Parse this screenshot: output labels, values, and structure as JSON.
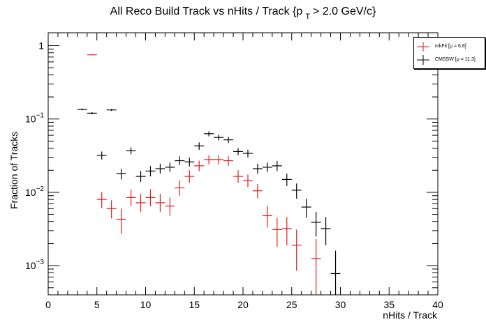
{
  "title": {
    "main": "All Reco Build Track vs nHits / Track {p",
    "sub": "T",
    "tail": "> 2.0 GeV/c}"
  },
  "legend": [
    {
      "label": "mkFit [μ = 6.8]",
      "color": "#e41a1c"
    },
    {
      "label": "CMSSW [μ = 11.3]",
      "color": "#000000"
    }
  ],
  "chart_data": {
    "type": "scatter",
    "title": "All Reco Build Track vs nHits / Track {p T > 2.0 GeV/c}",
    "xlabel": "nHits / Track",
    "ylabel": "Fraction of Tracks",
    "xlim": [
      0,
      40
    ],
    "ylim": [
      0.0004,
      1.5
    ],
    "yscale": "log",
    "x_ticks": [
      0,
      5,
      10,
      15,
      20,
      25,
      30,
      35,
      40
    ],
    "y_ticks": [
      {
        "value": 1,
        "base": "1",
        "exp": ""
      },
      {
        "value": 0.1,
        "base": "10",
        "exp": "−1"
      },
      {
        "value": 0.01,
        "base": "10",
        "exp": "−2"
      },
      {
        "value": 0.001,
        "base": "10",
        "exp": "−3"
      }
    ],
    "grid": false,
    "legend_position": "top-right",
    "series": [
      {
        "name": "mkFit [μ = 6.8]",
        "color": "#e41a1c",
        "points": [
          {
            "x": 4.5,
            "y": 0.75,
            "lo": 0.74,
            "hi": 0.76
          },
          {
            "x": 5.5,
            "y": 0.008,
            "lo": 0.0061,
            "hi": 0.0101
          },
          {
            "x": 6.5,
            "y": 0.006,
            "lo": 0.0044,
            "hi": 0.0078
          },
          {
            "x": 7.5,
            "y": 0.0043,
            "lo": 0.0027,
            "hi": 0.006
          },
          {
            "x": 8.5,
            "y": 0.0085,
            "lo": 0.0065,
            "hi": 0.011
          },
          {
            "x": 9.5,
            "y": 0.0072,
            "lo": 0.0054,
            "hi": 0.0095
          },
          {
            "x": 10.5,
            "y": 0.0085,
            "lo": 0.0065,
            "hi": 0.011
          },
          {
            "x": 11.5,
            "y": 0.0072,
            "lo": 0.0054,
            "hi": 0.0095
          },
          {
            "x": 12.5,
            "y": 0.0065,
            "lo": 0.0048,
            "hi": 0.0085
          },
          {
            "x": 13.5,
            "y": 0.0115,
            "lo": 0.009,
            "hi": 0.0145
          },
          {
            "x": 14.5,
            "y": 0.0165,
            "lo": 0.0135,
            "hi": 0.02
          },
          {
            "x": 15.5,
            "y": 0.023,
            "lo": 0.0195,
            "hi": 0.027
          },
          {
            "x": 16.5,
            "y": 0.028,
            "lo": 0.024,
            "hi": 0.032
          },
          {
            "x": 17.5,
            "y": 0.028,
            "lo": 0.024,
            "hi": 0.032
          },
          {
            "x": 18.5,
            "y": 0.027,
            "lo": 0.023,
            "hi": 0.031
          },
          {
            "x": 19.5,
            "y": 0.0165,
            "lo": 0.0135,
            "hi": 0.02
          },
          {
            "x": 20.5,
            "y": 0.0145,
            "lo": 0.0118,
            "hi": 0.0175
          },
          {
            "x": 21.5,
            "y": 0.0105,
            "lo": 0.0083,
            "hi": 0.013
          },
          {
            "x": 22.5,
            "y": 0.0048,
            "lo": 0.0033,
            "hi": 0.0065
          },
          {
            "x": 23.5,
            "y": 0.0031,
            "lo": 0.0018,
            "hi": 0.0045
          },
          {
            "x": 24.5,
            "y": 0.0032,
            "lo": 0.0019,
            "hi": 0.0046
          },
          {
            "x": 25.5,
            "y": 0.0019,
            "lo": 0.00085,
            "hi": 0.0031
          },
          {
            "x": 27.5,
            "y": 0.00125,
            "lo": 0.0004,
            "hi": 0.0023
          }
        ]
      },
      {
        "name": "CMSSW [μ = 11.3]",
        "color": "#000000",
        "points": [
          {
            "x": 3.5,
            "y": 0.135,
            "lo": 0.131,
            "hi": 0.139
          },
          {
            "x": 4.5,
            "y": 0.12,
            "lo": 0.116,
            "hi": 0.124
          },
          {
            "x": 5.5,
            "y": 0.032,
            "lo": 0.028,
            "hi": 0.036
          },
          {
            "x": 6.5,
            "y": 0.133,
            "lo": 0.129,
            "hi": 0.137
          },
          {
            "x": 7.5,
            "y": 0.018,
            "lo": 0.015,
            "hi": 0.021
          },
          {
            "x": 8.5,
            "y": 0.037,
            "lo": 0.033,
            "hi": 0.041
          },
          {
            "x": 9.5,
            "y": 0.0165,
            "lo": 0.0138,
            "hi": 0.0195
          },
          {
            "x": 10.5,
            "y": 0.0195,
            "lo": 0.0165,
            "hi": 0.0228
          },
          {
            "x": 11.5,
            "y": 0.021,
            "lo": 0.018,
            "hi": 0.0245
          },
          {
            "x": 12.5,
            "y": 0.022,
            "lo": 0.019,
            "hi": 0.0255
          },
          {
            "x": 13.5,
            "y": 0.027,
            "lo": 0.0235,
            "hi": 0.031
          },
          {
            "x": 14.5,
            "y": 0.026,
            "lo": 0.0225,
            "hi": 0.0298
          },
          {
            "x": 15.5,
            "y": 0.043,
            "lo": 0.038,
            "hi": 0.048
          },
          {
            "x": 16.5,
            "y": 0.063,
            "lo": 0.058,
            "hi": 0.068
          },
          {
            "x": 17.5,
            "y": 0.056,
            "lo": 0.051,
            "hi": 0.061
          },
          {
            "x": 18.5,
            "y": 0.052,
            "lo": 0.047,
            "hi": 0.057
          },
          {
            "x": 19.5,
            "y": 0.036,
            "lo": 0.032,
            "hi": 0.04
          },
          {
            "x": 20.5,
            "y": 0.034,
            "lo": 0.03,
            "hi": 0.038
          },
          {
            "x": 21.5,
            "y": 0.021,
            "lo": 0.018,
            "hi": 0.0245
          },
          {
            "x": 22.5,
            "y": 0.022,
            "lo": 0.019,
            "hi": 0.0255
          },
          {
            "x": 23.5,
            "y": 0.023,
            "lo": 0.0195,
            "hi": 0.0268
          },
          {
            "x": 24.5,
            "y": 0.015,
            "lo": 0.0122,
            "hi": 0.018
          },
          {
            "x": 25.5,
            "y": 0.0107,
            "lo": 0.0082,
            "hi": 0.0132
          },
          {
            "x": 26.5,
            "y": 0.0063,
            "lo": 0.0045,
            "hi": 0.0082
          },
          {
            "x": 27.5,
            "y": 0.0039,
            "lo": 0.0025,
            "hi": 0.0054
          },
          {
            "x": 28.5,
            "y": 0.0032,
            "lo": 0.0019,
            "hi": 0.0046
          },
          {
            "x": 29.5,
            "y": 0.00078,
            "lo": 0.0004,
            "hi": 0.0016
          }
        ]
      }
    ]
  }
}
